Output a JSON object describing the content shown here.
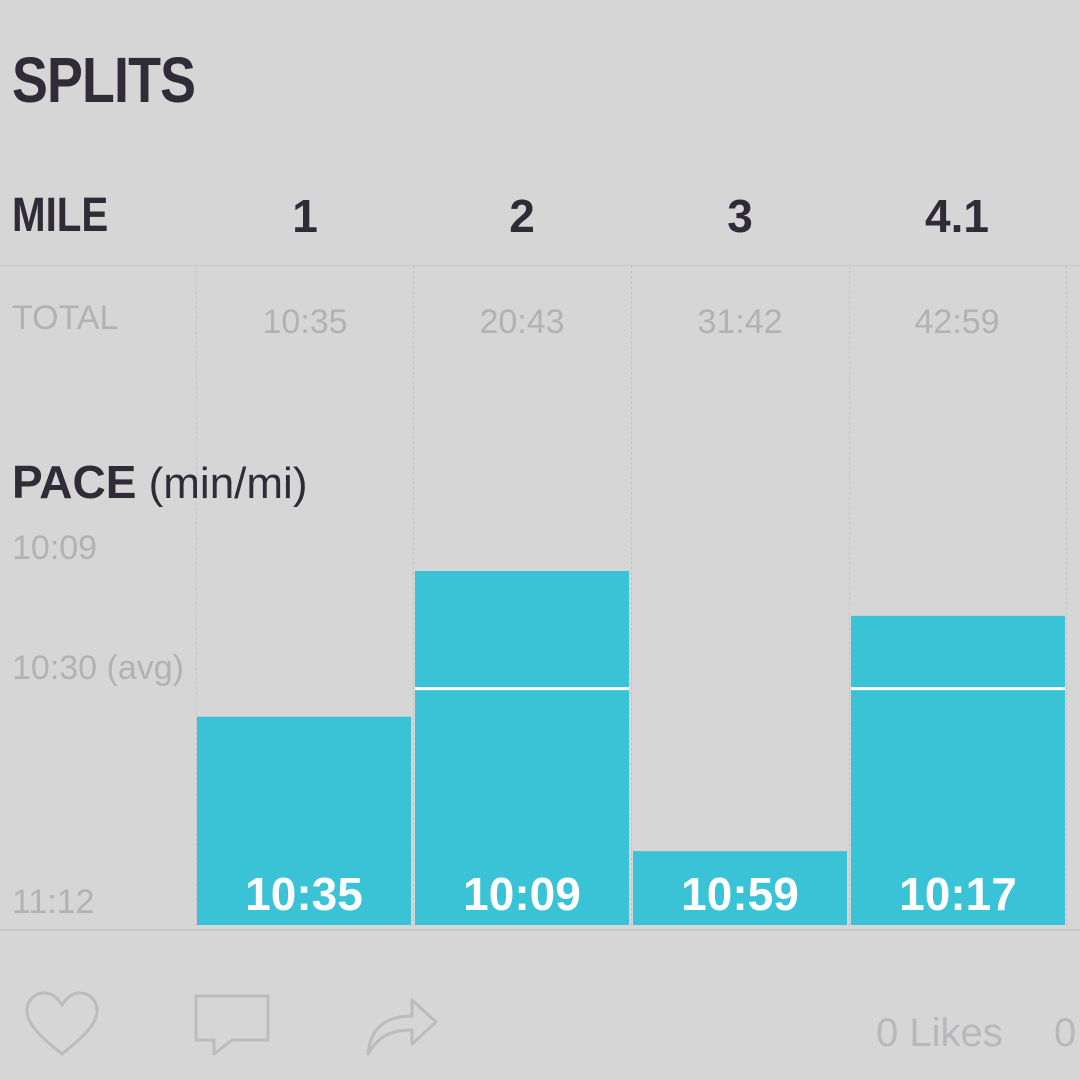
{
  "header": {
    "title": "SPLITS"
  },
  "table": {
    "mile_label": "MILE",
    "total_label": "TOTAL",
    "miles": [
      "1",
      "2",
      "3",
      "4.1"
    ],
    "totals": [
      "10:35",
      "20:43",
      "31:42",
      "42:59"
    ]
  },
  "pace": {
    "heading_bold": "PACE",
    "heading_unit": "(min/mi)"
  },
  "chart_data": {
    "type": "bar",
    "categories": [
      "1",
      "2",
      "3",
      "4.1"
    ],
    "values": [
      "10:35",
      "10:09",
      "10:59",
      "10:17"
    ],
    "values_seconds": [
      635,
      609,
      659,
      617
    ],
    "y_ticks": [
      "10:09",
      "10:30 (avg)",
      "11:12"
    ],
    "y_ticks_seconds": [
      609,
      630,
      672
    ],
    "average_seconds": 630,
    "colors": {
      "bar": "#3ac3d6",
      "avg_line": "#ffffff"
    }
  },
  "footer": {
    "like_icon": "heart-icon",
    "comment_icon": "comment-icon",
    "share_icon": "share-icon",
    "likes_text": "0 Likes",
    "comments_text": "0"
  }
}
